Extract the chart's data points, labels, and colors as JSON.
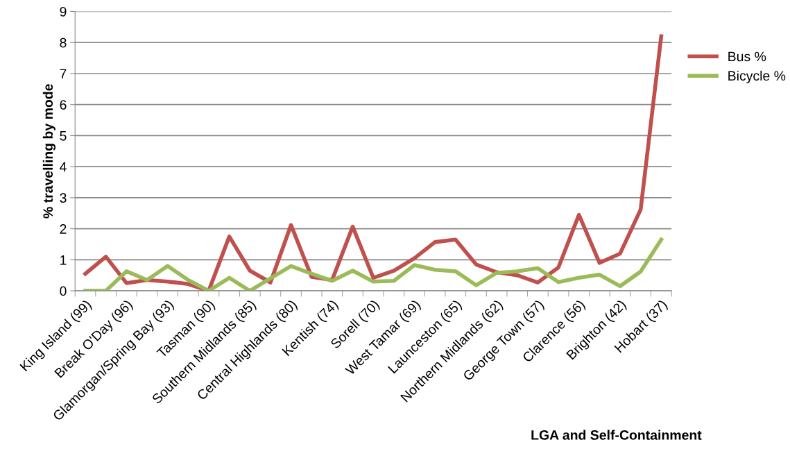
{
  "chart_data": {
    "type": "line",
    "xlabel": "LGA and Self-Containment",
    "ylabel": "% travelling by mode",
    "categories": [
      "King Island (99)",
      null,
      "Break O'Day (96)",
      null,
      "Glamorgan/Spring Bay (93)",
      null,
      "Tasman (90)",
      null,
      "Southern Midlands (85)",
      null,
      "Central Highlands (80)",
      null,
      "Kentish (74)",
      null,
      "Sorell (70)",
      null,
      "West Tamar (69)",
      null,
      "Launceston (65)",
      null,
      "Northern Midlands (62)",
      null,
      "George Town (57)",
      null,
      "Clarence (56)",
      null,
      "Brighton (42)",
      null,
      "Hobart (37)"
    ],
    "series": [
      {
        "name": "Bus %",
        "color": "#c0504d",
        "values": [
          0.55,
          1.1,
          0.25,
          0.35,
          0.3,
          0.22,
          0,
          1.75,
          0.65,
          0.27,
          2.12,
          0.45,
          0.35,
          2.07,
          0.42,
          0.65,
          1.05,
          1.57,
          1.65,
          0.85,
          0.6,
          0.5,
          0.27,
          0.75,
          2.45,
          0.9,
          1.2,
          2.62,
          8.2
        ]
      },
      {
        "name": "Bicycle %",
        "color": "#9bbb59",
        "values": [
          0,
          0,
          0.63,
          0.35,
          0.8,
          0.35,
          0,
          0.42,
          0,
          0.4,
          0.8,
          0.55,
          0.32,
          0.65,
          0.3,
          0.32,
          0.83,
          0.68,
          0.63,
          0.18,
          0.58,
          0.63,
          0.73,
          0.28,
          0.42,
          0.52,
          0.15,
          0.62,
          1.65
        ]
      }
    ],
    "ylim": [
      0,
      9
    ],
    "yticks": [
      0,
      1,
      2,
      3,
      4,
      5,
      6,
      7,
      8,
      9
    ],
    "grid": "y",
    "legend": "right",
    "marker": "none",
    "line_style": "solid"
  }
}
